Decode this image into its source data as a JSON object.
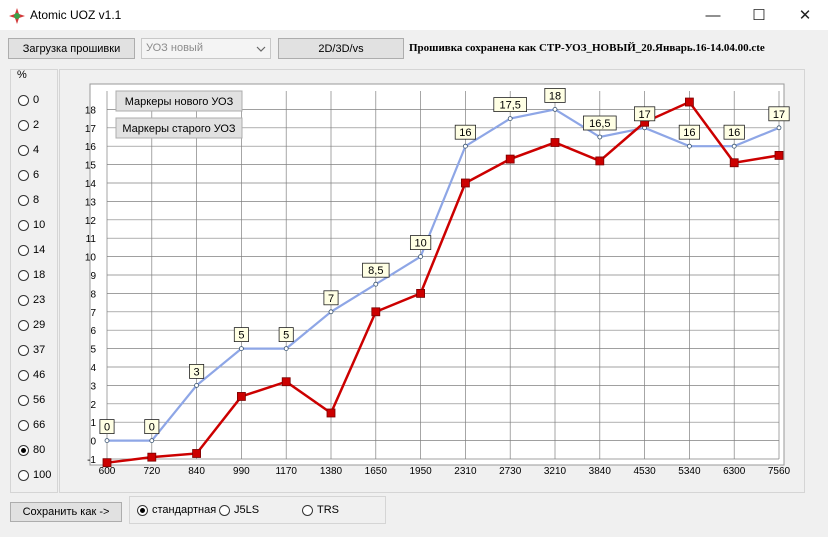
{
  "window": {
    "title": "Atomic UOZ v1.1",
    "controls": [
      "—",
      "☐",
      "✕"
    ]
  },
  "toolbar": {
    "load_button": "Загрузка прошивки",
    "profile_select": "УОЗ новый",
    "mode_button": "2D/3D/vs",
    "status": "Прошивка сохранена как СТР-УОЗ_НОВЫЙ_20.Январь.16-14.04.00.cte"
  },
  "left_panel": {
    "header": "%",
    "options": [
      "0",
      "2",
      "4",
      "6",
      "8",
      "10",
      "14",
      "18",
      "23",
      "29",
      "37",
      "46",
      "56",
      "66",
      "80",
      "100"
    ],
    "selected": "80"
  },
  "chart_buttons": {
    "new_markers": "Маркеры нового УОЗ",
    "old_markers": "Маркеры старого УОЗ"
  },
  "chart_data": {
    "type": "line",
    "categories": [
      "600",
      "720",
      "840",
      "990",
      "1170",
      "1380",
      "1650",
      "1950",
      "2310",
      "2730",
      "3210",
      "3840",
      "4530",
      "5340",
      "6300",
      "7560"
    ],
    "y_ticks": [
      "-1",
      "0",
      "1",
      "2",
      "3",
      "4",
      "5",
      "6",
      "7",
      "8",
      "9",
      "10",
      "11",
      "12",
      "13",
      "14",
      "15",
      "16",
      "17",
      "18"
    ],
    "ylim": [
      -1,
      19
    ],
    "grid": true,
    "series": [
      {
        "name": "",
        "color": "#8ea6e6",
        "marker": "small-circle",
        "values": [
          0,
          0,
          3,
          5,
          5,
          7,
          8.5,
          10,
          16,
          17.5,
          18,
          16.5,
          17,
          16,
          16,
          17
        ],
        "labels": [
          "0",
          "0",
          "3",
          "5",
          "5",
          "7",
          "8,5",
          "10",
          "16",
          "17,5",
          "18",
          "16,5",
          "17",
          "16",
          "16",
          "17"
        ]
      },
      {
        "name": "",
        "color": "#cc0000",
        "marker": "square",
        "values": [
          -1.2,
          -0.9,
          -0.7,
          2.4,
          3.2,
          1.5,
          7,
          8,
          14,
          15.3,
          16.2,
          15.2,
          17.3,
          18.4,
          15.1,
          15.5
        ]
      }
    ]
  },
  "bottom": {
    "save_button": "Сохранить как ->",
    "format_options": [
      "стандартная",
      "J5LS",
      "TRS"
    ],
    "selected_format": "стандартная"
  }
}
